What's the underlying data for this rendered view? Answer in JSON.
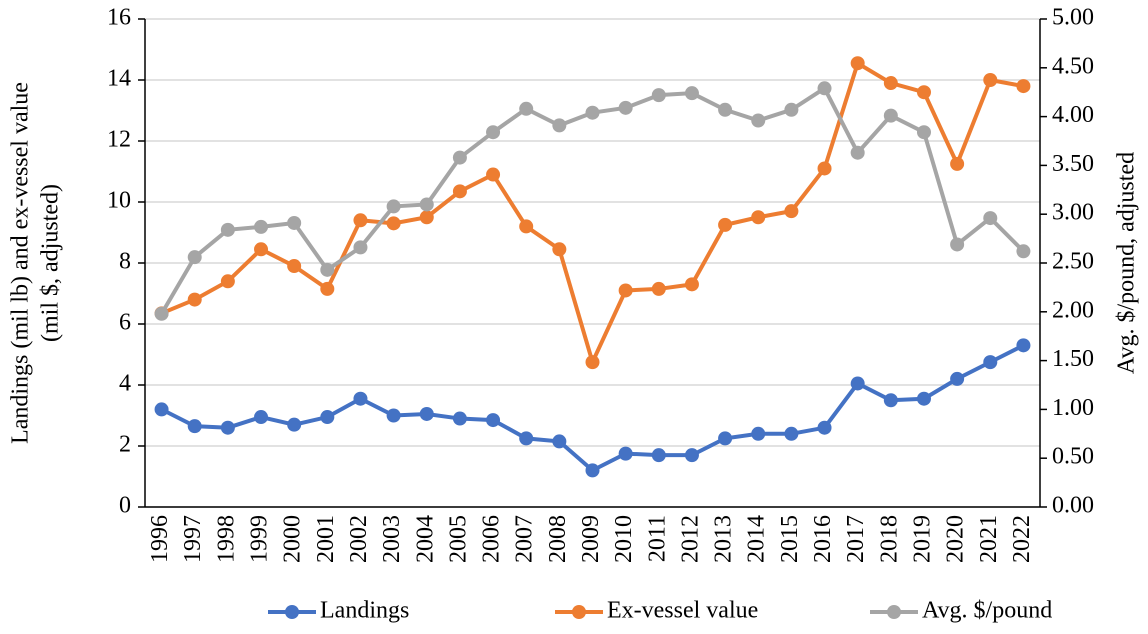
{
  "chart_data": {
    "type": "line",
    "ylabel": [
      "Landings (mil lb) and ex-vessel value",
      "(mil $, adjusted)"
    ],
    "y2label": "Avg. $/pound, adjusted",
    "categories": [
      "1996",
      "1997",
      "1998",
      "1999",
      "2000",
      "2001",
      "2002",
      "2003",
      "2004",
      "2005",
      "2006",
      "2007",
      "2008",
      "2009",
      "2010",
      "2011",
      "2012",
      "2013",
      "2014",
      "2015",
      "2016",
      "2017",
      "2018",
      "2019",
      "2020",
      "2021",
      "2022"
    ],
    "series": [
      {
        "name": "Landings",
        "color": "#4472c4",
        "values": [
          3.2,
          2.65,
          2.6,
          2.95,
          2.7,
          2.95,
          3.55,
          3.0,
          3.05,
          2.9,
          2.85,
          2.25,
          2.15,
          1.2,
          1.75,
          1.7,
          1.7,
          2.25,
          2.4,
          2.4,
          2.6,
          4.05,
          3.5,
          3.55,
          4.2,
          4.75,
          5.3
        ]
      },
      {
        "name": "Ex-vessel value",
        "color": "#ed7d31",
        "values": [
          6.35,
          6.8,
          7.4,
          8.45,
          7.9,
          7.15,
          9.4,
          9.3,
          9.5,
          10.35,
          10.9,
          9.2,
          8.45,
          4.75,
          7.1,
          7.15,
          7.3,
          9.25,
          9.5,
          9.7,
          11.1,
          14.55,
          13.9,
          13.6,
          11.25,
          14.0,
          13.8
        ]
      },
      {
        "name": "Avg. $/pound",
        "color": "#a5a5a5",
        "axis": "y2",
        "values": [
          1.98,
          2.56,
          2.84,
          2.87,
          2.91,
          2.43,
          2.66,
          3.08,
          3.1,
          3.58,
          3.84,
          4.08,
          3.91,
          4.04,
          4.09,
          4.22,
          4.24,
          4.07,
          3.96,
          4.07,
          4.29,
          3.63,
          4.01,
          3.84,
          2.69,
          2.96,
          2.62
        ]
      }
    ],
    "ylim": [
      0,
      16
    ],
    "yticks": [
      0,
      2,
      4,
      6,
      8,
      10,
      12,
      14,
      16
    ],
    "y2lim": [
      0,
      5
    ],
    "y2ticks": [
      {
        "value": 0,
        "label": "0.00"
      },
      {
        "value": 0.5,
        "label": "0.50"
      },
      {
        "value": 1,
        "label": "1.00"
      },
      {
        "value": 1.5,
        "label": "1.50"
      },
      {
        "value": 2,
        "label": "2.00"
      },
      {
        "value": 2.5,
        "label": "2.50"
      },
      {
        "value": 3,
        "label": "3.00"
      },
      {
        "value": 3.5,
        "label": "3.50"
      },
      {
        "value": 4,
        "label": "4.00"
      },
      {
        "value": 4.5,
        "label": "4.50"
      },
      {
        "value": 5,
        "label": "5.00"
      }
    ],
    "grid": true,
    "legend": "bottom"
  }
}
